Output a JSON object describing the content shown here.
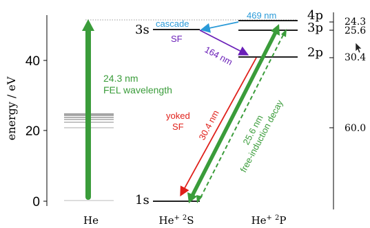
{
  "diagram": {
    "left_axis": {
      "label": "energy / eV",
      "ticks": [
        {
          "value": 0,
          "label": "0"
        },
        {
          "value": 20,
          "label": "20"
        },
        {
          "value": 40,
          "label": "40"
        }
      ]
    },
    "right_axis": {
      "ticks": [
        {
          "label": "24.3"
        },
        {
          "label": "25.6"
        },
        {
          "label": "30.4"
        },
        {
          "label": "60.0"
        }
      ]
    },
    "columns": {
      "he": "He",
      "hep_s": "He+ 2S",
      "hep_p": "He+ 2P"
    },
    "levels": {
      "s3": "3s",
      "s1": "1s",
      "p4": "4p",
      "p3": "3p",
      "p2": "2p"
    },
    "annotations": {
      "fel_nm": "24.3 nm",
      "fel_text": "FEL wavelength",
      "cascade": "cascade",
      "nm469": "469 nm",
      "sf": "SF",
      "nm164": "164 nm",
      "yoked": "yoked",
      "yoked_sf": "SF",
      "nm304": "30.4 nm",
      "nm256": "25.6 nm",
      "fid": "free-induction decay"
    },
    "colors": {
      "green": "#3a9c3a",
      "red": "#e0201a",
      "purple": "#6a1fb8",
      "blue": "#2a9ad8",
      "black": "#000000"
    }
  }
}
